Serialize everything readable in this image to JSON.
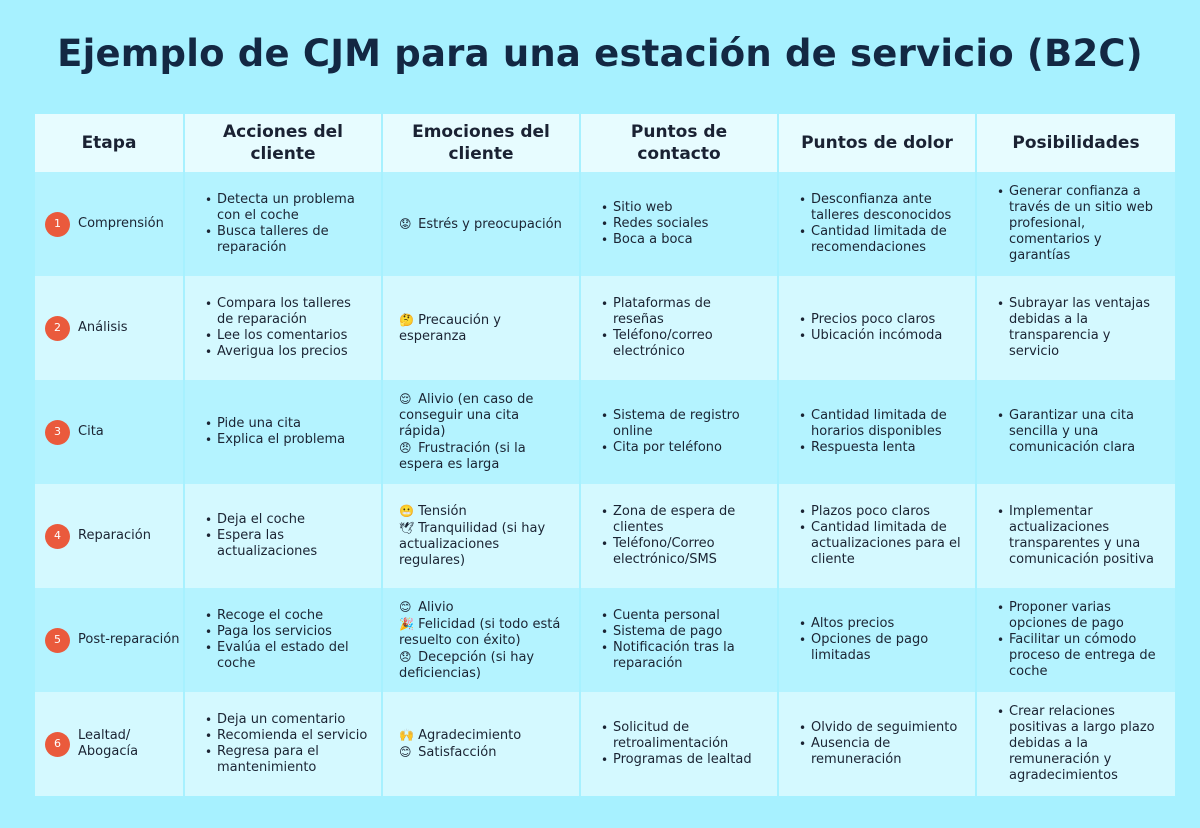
{
  "title": "Ejemplo de CJM para una estación de servicio (B2C)",
  "headers": [
    "Etapa",
    "Acciones del cliente",
    "Emociones del cliente",
    "Puntos de contacto",
    "Puntos de dolor",
    "Posibilidades"
  ],
  "rows": [
    {
      "num": "1",
      "stage": "Comprensión",
      "actions": [
        "Detecta un problema con el coche",
        "Busca talleres de reparación"
      ],
      "emotions": [
        {
          "emoji": "😟",
          "text": "Estrés y preocupación"
        }
      ],
      "touchpoints": [
        "Sitio web",
        "Redes sociales",
        "Boca a boca"
      ],
      "pains": [
        "Desconfianza ante talleres desconocidos",
        "Cantidad limitada de recomendaciones"
      ],
      "possibilities": [
        "Generar confianza a través de un sitio web profesional, comentarios y garantías"
      ]
    },
    {
      "num": "2",
      "stage": "Análisis",
      "actions": [
        "Compara los talleres de reparación",
        "Lee los comentarios",
        "Averigua los precios"
      ],
      "emotions": [
        {
          "emoji": "🤔",
          "text": "Precaución y esperanza"
        }
      ],
      "touchpoints": [
        "Plataformas de reseñas",
        "Teléfono/correo electrónico"
      ],
      "pains": [
        "Precios poco claros",
        "Ubicación incómoda"
      ],
      "possibilities": [
        "Subrayar las ventajas debidas a la transparencia y servicio"
      ]
    },
    {
      "num": "3",
      "stage": "Cita",
      "actions": [
        "Pide una cita",
        "Explica el problema"
      ],
      "emotions": [
        {
          "emoji": "😌",
          "text": "Alivio (en caso de conseguir una cita rápida)"
        },
        {
          "emoji": "😠",
          "text": "Frustración (si la espera es larga"
        }
      ],
      "touchpoints": [
        "Sistema de registro online",
        "Cita por teléfono"
      ],
      "pains": [
        "Cantidad limitada de horarios disponibles",
        "Respuesta lenta"
      ],
      "possibilities": [
        "Garantizar una cita sencilla y una comunicación clara"
      ]
    },
    {
      "num": "4",
      "stage": "Reparación",
      "actions": [
        "Deja el coche",
        "Espera las actualizaciones"
      ],
      "emotions": [
        {
          "emoji": "😬",
          "text": "Tensión"
        },
        {
          "emoji": "🕊",
          "text": "Tranquilidad (si hay actualizaciones regulares)"
        }
      ],
      "touchpoints": [
        "Zona de espera de clientes",
        "Teléfono/Correo electrónico/SMS"
      ],
      "pains": [
        "Plazos poco claros",
        "Cantidad limitada de actualizaciones para el cliente"
      ],
      "possibilities": [
        "Implementar actualizaciones transparentes y una comunicación positiva"
      ]
    },
    {
      "num": "5",
      "stage": "Post-reparación",
      "actions": [
        "Recoge el coche",
        "Paga los servicios",
        "Evalúa el estado del coche"
      ],
      "emotions": [
        {
          "emoji": "😊",
          "text": "Alivio"
        },
        {
          "emoji": "🎉",
          "text": "Felicidad (si todo está resuelto con éxito)"
        },
        {
          "emoji": "😞",
          "text": "Decepción (si hay deficiencias)"
        }
      ],
      "touchpoints": [
        "Cuenta personal",
        "Sistema de pago",
        "Notificación tras la reparación"
      ],
      "pains": [
        "Altos precios",
        "Opciones de pago limitadas"
      ],
      "possibilities": [
        "Proponer varias opciones de pago",
        "Facilitar un cómodo proceso de entrega de coche"
      ]
    },
    {
      "num": "6",
      "stage": "Lealtad/\nAbogacía",
      "actions": [
        "Deja un comentario",
        "Recomienda el servicio",
        "Regresa para el mantenimiento"
      ],
      "emotions": [
        {
          "emoji": "🙌",
          "text": "Agradecimiento"
        },
        {
          "emoji": "😊",
          "text": "Satisfacción"
        }
      ],
      "touchpoints": [
        "Solicitud de retroalimentación",
        "Programas de lealtad"
      ],
      "pains": [
        "Olvido de seguimiento",
        "Ausencia de remuneración"
      ],
      "possibilities": [
        "Crear relaciones positivas a largo plazo debidas a la remuneración y agradecimientos"
      ]
    }
  ]
}
